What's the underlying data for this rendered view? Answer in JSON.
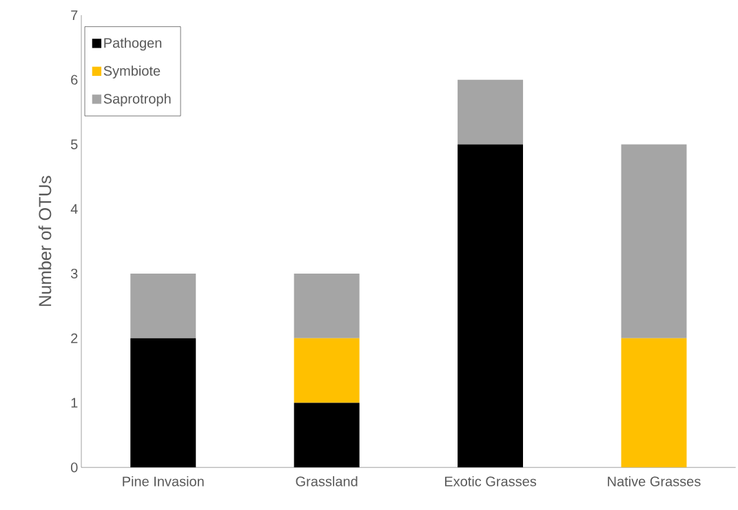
{
  "chart_data": {
    "type": "bar",
    "stacked": true,
    "ylabel": "Number of OTUs",
    "categories": [
      "Pine Invasion",
      "Grassland",
      "Exotic Grasses",
      "Native Grasses"
    ],
    "series": [
      {
        "name": "Pathogen",
        "color": "#000000",
        "values": [
          2,
          1,
          5,
          0
        ]
      },
      {
        "name": "Symbiote",
        "color": "#ffc000",
        "values": [
          0,
          1,
          0,
          2
        ]
      },
      {
        "name": "Saprotroph",
        "color": "#a5a5a5",
        "values": [
          1,
          1,
          1,
          3
        ]
      }
    ],
    "ylim": [
      0,
      7
    ],
    "yticks": [
      0,
      1,
      2,
      3,
      4,
      5,
      6,
      7
    ],
    "legend": "top left"
  }
}
